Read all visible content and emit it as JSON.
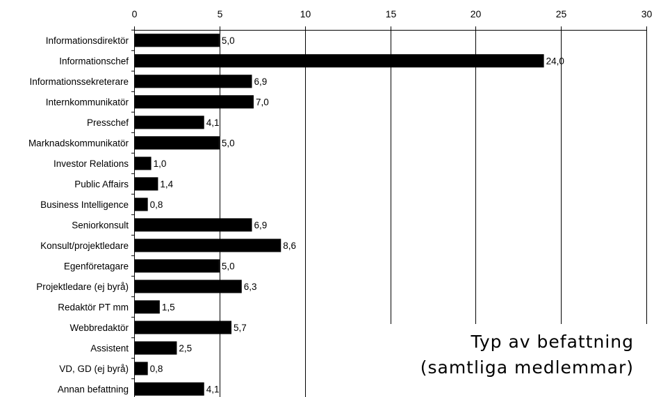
{
  "chart_data": {
    "type": "bar",
    "orientation": "horizontal",
    "title_lines": [
      "Typ av befattning",
      "(samtliga medlemmar)"
    ],
    "categories": [
      "Informationsdirektör",
      "Informationschef",
      "Informationssekreterare",
      "Internkommunikatör",
      "Presschef",
      "Marknadskommunikatör",
      "Investor Relations",
      "Public Affairs",
      "Business Intelligence",
      "Seniorkonsult",
      "Konsult/projektledare",
      "Egenföretagare",
      "Projektledare (ej byrå)",
      "Redaktör PT mm",
      "Webbredaktör",
      "Assistent",
      "VD, GD (ej byrå)",
      "Annan befattning"
    ],
    "values": [
      5.0,
      24.0,
      6.9,
      7.0,
      4.1,
      5.0,
      1.0,
      1.4,
      0.8,
      6.9,
      8.6,
      5.0,
      6.3,
      1.5,
      5.7,
      2.5,
      0.8,
      4.1
    ],
    "value_labels": [
      "5,0",
      "24,0",
      "6,9",
      "7,0",
      "4,1",
      "5,0",
      "1,0",
      "1,4",
      "0,8",
      "6,9",
      "8,6",
      "5,0",
      "6,3",
      "1,5",
      "5,7",
      "2,5",
      "0,8",
      "4,1"
    ],
    "x_ticks": [
      0,
      5,
      10,
      15,
      20,
      25,
      30
    ],
    "tick_labels": [
      "0",
      "5",
      "10",
      "15",
      "20",
      "25",
      "30"
    ],
    "xlim": [
      0,
      30
    ],
    "xaxis_position": "top",
    "grid": true,
    "bar_color": "#000000"
  }
}
